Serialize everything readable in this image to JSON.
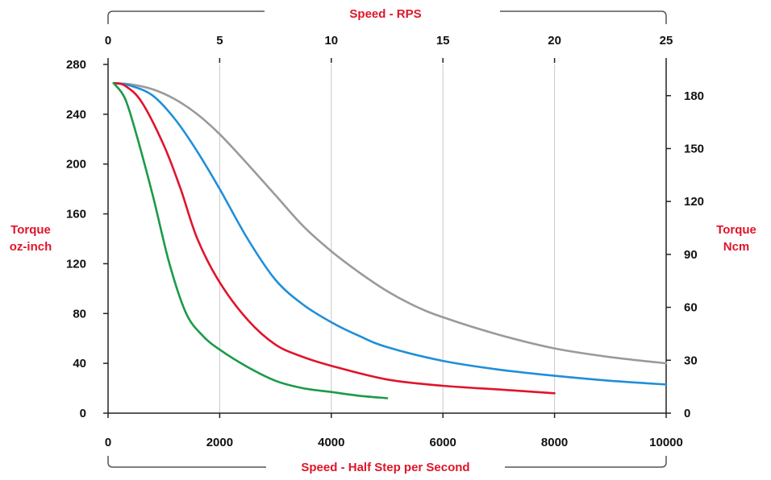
{
  "chart_data": {
    "type": "line",
    "x_bottom": {
      "label": "Speed - Half Step per Second",
      "range": [
        0,
        10000
      ],
      "ticks": [
        0,
        2000,
        4000,
        6000,
        8000,
        10000
      ],
      "tick_labels": [
        "0",
        "2000",
        "4000",
        "6000",
        "8000",
        "10000"
      ]
    },
    "x_top": {
      "label": "Speed - RPS",
      "range": [
        0,
        25
      ],
      "ticks": [
        0,
        5,
        10,
        15,
        20,
        25
      ],
      "tick_labels": [
        "0",
        "5",
        "10",
        "15",
        "20",
        "25"
      ]
    },
    "y_left": {
      "label_lines": [
        "Torque",
        "oz-inch"
      ],
      "range": [
        0,
        280
      ],
      "ticks": [
        0,
        40,
        80,
        120,
        160,
        200,
        240,
        280
      ],
      "tick_labels": [
        "0",
        "40",
        "80",
        "120",
        "160",
        "200",
        "240",
        "280"
      ]
    },
    "y_right": {
      "label_lines": [
        "Torque",
        "Ncm"
      ],
      "range": [
        0,
        197.7
      ],
      "ticks": [
        0,
        30,
        60,
        90,
        120,
        150,
        180
      ],
      "tick_labels": [
        "0",
        "30",
        "60",
        "90",
        "120",
        "150",
        "180"
      ]
    },
    "grid": "vertical",
    "series": [
      {
        "color": "#9a9a9c",
        "x": [
          100,
          400,
          800,
          1200,
          1600,
          2000,
          2500,
          3000,
          3500,
          4000,
          4500,
          5000,
          5500,
          6000,
          7000,
          8000,
          9000,
          10000
        ],
        "y": [
          265,
          264,
          260,
          252,
          240,
          224,
          200,
          175,
          150,
          130,
          113,
          98,
          86,
          77,
          63,
          52,
          45,
          40
        ]
      },
      {
        "color": "#1f8fd8",
        "x": [
          100,
          400,
          800,
          1200,
          1600,
          2000,
          2500,
          3000,
          3500,
          4000,
          4500,
          5000,
          6000,
          7000,
          8000,
          9000,
          10000
        ],
        "y": [
          265,
          263,
          255,
          236,
          210,
          180,
          140,
          107,
          87,
          73,
          62,
          53,
          42,
          35,
          30,
          26,
          23
        ]
      },
      {
        "color": "#e0142a",
        "x": [
          100,
          300,
          600,
          1000,
          1300,
          1600,
          2000,
          2500,
          3000,
          3500,
          4000,
          5000,
          6000,
          7000,
          8000
        ],
        "y": [
          265,
          263,
          250,
          215,
          180,
          140,
          105,
          75,
          55,
          45,
          38,
          27,
          22,
          19,
          16
        ]
      },
      {
        "color": "#1b9a48",
        "x": [
          100,
          300,
          500,
          800,
          1100,
          1400,
          1700,
          2000,
          2500,
          3000,
          3500,
          4000,
          4500,
          5000
        ],
        "y": [
          265,
          253,
          225,
          175,
          120,
          80,
          62,
          51,
          37,
          26,
          20,
          17,
          14,
          12
        ]
      }
    ]
  }
}
